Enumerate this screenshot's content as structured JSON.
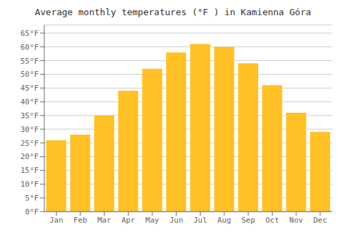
{
  "chart_data": {
    "type": "bar",
    "title": "Average monthly temperatures (°F ) in Kamienna Góra",
    "categories": [
      "Jan",
      "Feb",
      "Mar",
      "Apr",
      "May",
      "Jun",
      "Jul",
      "Aug",
      "Sep",
      "Oct",
      "Nov",
      "Dec"
    ],
    "values": [
      26,
      28,
      35,
      44,
      52,
      58,
      61,
      60,
      54,
      46,
      36,
      29
    ],
    "color": "#FFC125",
    "ylim": [
      0,
      68
    ],
    "yticks": [
      {
        "value": 0,
        "label": "0°F"
      },
      {
        "value": 5,
        "label": "5°F"
      },
      {
        "value": 10,
        "label": "10°F"
      },
      {
        "value": 15,
        "label": "15°F"
      },
      {
        "value": 20,
        "label": "20°F"
      },
      {
        "value": 25,
        "label": "25°F"
      },
      {
        "value": 30,
        "label": "30°F"
      },
      {
        "value": 35,
        "label": "35°F"
      },
      {
        "value": 40,
        "label": "40°F"
      },
      {
        "value": 45,
        "label": "45°F"
      },
      {
        "value": 50,
        "label": "50°F"
      },
      {
        "value": 55,
        "label": "55°F"
      },
      {
        "value": 60,
        "label": "60°F"
      },
      {
        "value": 65,
        "label": "65°F"
      }
    ],
    "grid": true
  }
}
